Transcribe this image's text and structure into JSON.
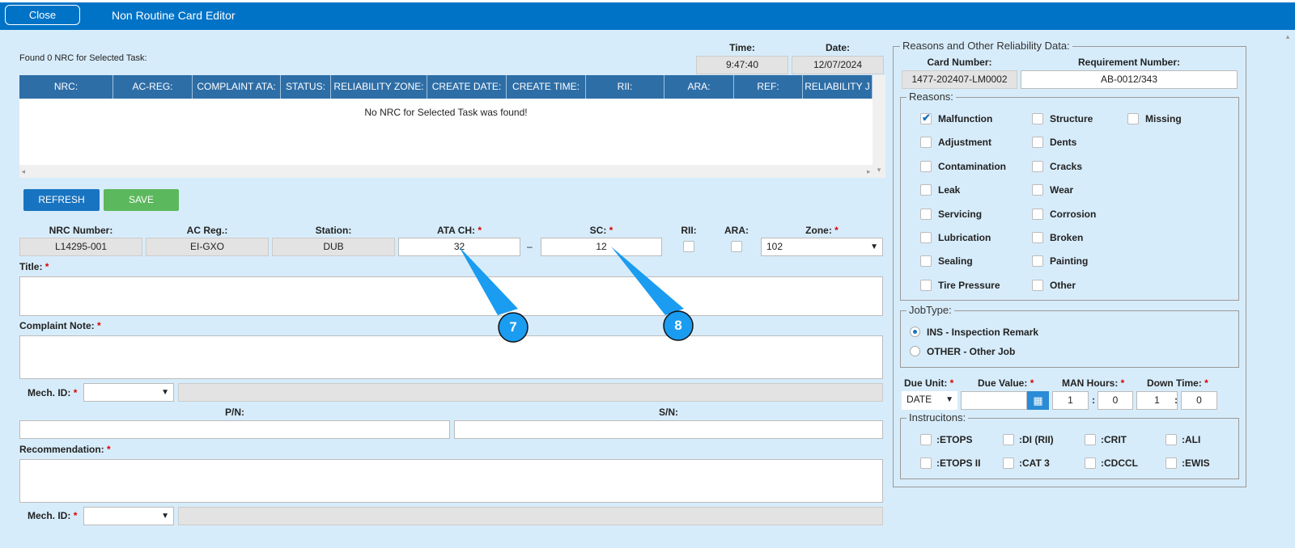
{
  "header": {
    "close_label": "Close",
    "title": "Non Routine Card Editor"
  },
  "found_text": "Found 0 NRC for Selected Task:",
  "time": {
    "label": "Time:",
    "value": "9:47:40"
  },
  "date": {
    "label": "Date:",
    "value": "12/07/2024"
  },
  "table": {
    "columns": [
      "NRC:",
      "AC-REG:",
      "COMPLAINT ATA:",
      "STATUS:",
      "RELIABILITY ZONE:",
      "CREATE DATE:",
      "CREATE TIME:",
      "RII:",
      "ARA:",
      "REF:",
      "RELIABILITY J"
    ],
    "empty_text": "No NRC for Selected Task was found!"
  },
  "buttons": {
    "refresh": "REFRESH",
    "save": "SAVE"
  },
  "form": {
    "nrc_number": {
      "label": "NRC Number:",
      "value": "L14295-001"
    },
    "ac_reg": {
      "label": "AC Reg.:",
      "value": "EI-GXO"
    },
    "station": {
      "label": "Station:",
      "value": "DUB"
    },
    "ata_ch": {
      "label": "ATA CH:",
      "value": "32"
    },
    "dash": "–",
    "sc": {
      "label": "SC:",
      "value": "12"
    },
    "rii": {
      "label": "RII:"
    },
    "ara": {
      "label": "ARA:"
    },
    "zone": {
      "label": "Zone:",
      "value": "102"
    },
    "title_label": "Title:",
    "complaint_label": "Complaint Note:",
    "mech_id_label": "Mech. ID:",
    "pn_label": "P/N:",
    "sn_label": "S/N:",
    "recommendation_label": "Recommendation:",
    "req_mark": "*"
  },
  "callouts": [
    "7",
    "8"
  ],
  "right": {
    "legend": "Reasons and Other Reliability Data:",
    "card_number": {
      "label": "Card Number:",
      "value": "1477-202407-LM0002"
    },
    "requirement_number": {
      "label": "Requirement Number:",
      "value": "AB-0012/343"
    },
    "reasons": {
      "legend": "Reasons:",
      "items": [
        {
          "label": "Malfunction",
          "checked": true
        },
        {
          "label": "Structure",
          "checked": false
        },
        {
          "label": "Missing",
          "checked": false
        },
        {
          "label": "Adjustment",
          "checked": false
        },
        {
          "label": "Dents",
          "checked": false
        },
        {
          "label": "Contamination",
          "checked": false
        },
        {
          "label": "Cracks",
          "checked": false
        },
        {
          "label": "Leak",
          "checked": false
        },
        {
          "label": "Wear",
          "checked": false
        },
        {
          "label": "Servicing",
          "checked": false
        },
        {
          "label": "Corrosion",
          "checked": false
        },
        {
          "label": "Lubrication",
          "checked": false
        },
        {
          "label": "Broken",
          "checked": false
        },
        {
          "label": "Sealing",
          "checked": false
        },
        {
          "label": "Painting",
          "checked": false
        },
        {
          "label": "Tire Pressure",
          "checked": false
        },
        {
          "label": "Other",
          "checked": false
        }
      ]
    },
    "jobtype": {
      "legend": "JobType:",
      "options": [
        {
          "label": "INS - Inspection Remark",
          "selected": true
        },
        {
          "label": "OTHER - Other Job",
          "selected": false
        }
      ]
    },
    "due_unit": {
      "label": "Due Unit:",
      "value": "DATE"
    },
    "due_value": {
      "label": "Due Value:",
      "value": ""
    },
    "man_hours": {
      "label": "MAN Hours:",
      "h": "1",
      "m": "0"
    },
    "down_time": {
      "label": "Down Time:",
      "h": "1",
      "m": "0"
    },
    "colon": ":",
    "instructions": {
      "legend": "Instrucitons:",
      "items": [
        ":ETOPS",
        ":DI (RII)",
        ":CRIT",
        ":ALI",
        ":ETOPS II",
        ":CAT 3",
        ":CDCCL",
        ":EWIS"
      ]
    }
  },
  "colors": {
    "header": "#0173c7",
    "table_header": "#2e6ea7",
    "refresh": "#1874c1",
    "save": "#5cb85c",
    "callout": "#1a9cf0"
  }
}
